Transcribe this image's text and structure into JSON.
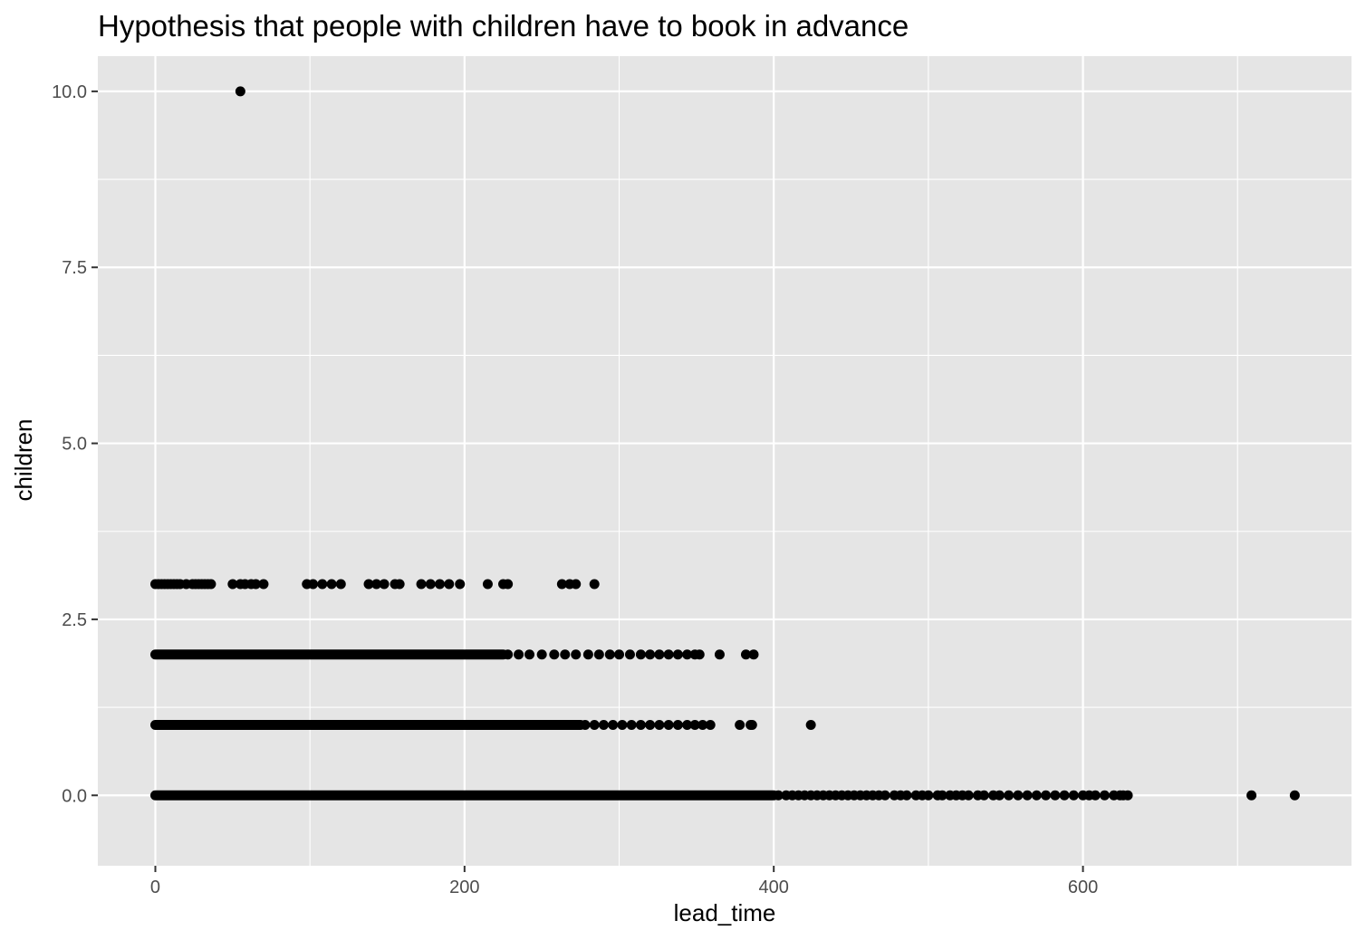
{
  "chart_data": {
    "type": "scatter",
    "title": "Hypothesis that people with children have to book in advance",
    "xlabel": "lead_time",
    "ylabel": "children",
    "xlim": [
      -37.2,
      773.7
    ],
    "ylim": [
      -1.0,
      10.5
    ],
    "x_ticks": [
      0,
      200,
      400,
      600
    ],
    "x_tick_labels": [
      "0",
      "200",
      "400",
      "600"
    ],
    "y_ticks": [
      0,
      2.5,
      5,
      7.5,
      10
    ],
    "y_tick_labels": [
      "0.0",
      "2.5",
      "5.0",
      "7.5",
      "10.0"
    ],
    "grid": true,
    "legend": "none",
    "colors": {
      "panel": "#e5e5e5",
      "grid": "#ffffff",
      "point": "#000000"
    },
    "series": [
      {
        "dense_ranges": [
          {
            "y": 0,
            "from": 0,
            "to": 400
          },
          {
            "y": 1,
            "from": 0,
            "to": 275
          },
          {
            "y": 2,
            "from": 0,
            "to": 225
          }
        ],
        "points": [
          [
            55,
            10
          ],
          [
            0,
            3
          ],
          [
            2,
            3
          ],
          [
            4,
            3
          ],
          [
            6,
            3
          ],
          [
            8,
            3
          ],
          [
            10,
            3
          ],
          [
            12,
            3
          ],
          [
            14,
            3
          ],
          [
            16,
            3
          ],
          [
            20,
            3
          ],
          [
            24,
            3
          ],
          [
            26,
            3
          ],
          [
            28,
            3
          ],
          [
            30,
            3
          ],
          [
            32,
            3
          ],
          [
            34,
            3
          ],
          [
            36,
            3
          ],
          [
            50,
            3
          ],
          [
            55,
            3
          ],
          [
            58,
            3
          ],
          [
            62,
            3
          ],
          [
            65,
            3
          ],
          [
            70,
            3
          ],
          [
            98,
            3
          ],
          [
            102,
            3
          ],
          [
            108,
            3
          ],
          [
            114,
            3
          ],
          [
            120,
            3
          ],
          [
            138,
            3
          ],
          [
            143,
            3
          ],
          [
            148,
            3
          ],
          [
            155,
            3
          ],
          [
            158,
            3
          ],
          [
            172,
            3
          ],
          [
            178,
            3
          ],
          [
            184,
            3
          ],
          [
            190,
            3
          ],
          [
            197,
            3
          ],
          [
            215,
            3
          ],
          [
            225,
            3
          ],
          [
            228,
            3
          ],
          [
            263,
            3
          ],
          [
            268,
            3
          ],
          [
            272,
            3
          ],
          [
            284,
            3
          ],
          [
            228,
            2
          ],
          [
            235,
            2
          ],
          [
            242,
            2
          ],
          [
            250,
            2
          ],
          [
            258,
            2
          ],
          [
            265,
            2
          ],
          [
            272,
            2
          ],
          [
            280,
            2
          ],
          [
            287,
            2
          ],
          [
            294,
            2
          ],
          [
            300,
            2
          ],
          [
            307,
            2
          ],
          [
            314,
            2
          ],
          [
            320,
            2
          ],
          [
            326,
            2
          ],
          [
            332,
            2
          ],
          [
            338,
            2
          ],
          [
            344,
            2
          ],
          [
            349,
            2
          ],
          [
            352,
            2
          ],
          [
            365,
            2
          ],
          [
            382,
            2
          ],
          [
            387,
            2
          ],
          [
            278,
            1
          ],
          [
            284,
            1
          ],
          [
            290,
            1
          ],
          [
            296,
            1
          ],
          [
            302,
            1
          ],
          [
            308,
            1
          ],
          [
            314,
            1
          ],
          [
            320,
            1
          ],
          [
            326,
            1
          ],
          [
            332,
            1
          ],
          [
            338,
            1
          ],
          [
            344,
            1
          ],
          [
            349,
            1
          ],
          [
            354,
            1
          ],
          [
            359,
            1
          ],
          [
            378,
            1
          ],
          [
            385,
            1
          ],
          [
            386,
            1
          ],
          [
            424,
            1
          ],
          [
            403,
            0
          ],
          [
            408,
            0
          ],
          [
            412,
            0
          ],
          [
            416,
            0
          ],
          [
            420,
            0
          ],
          [
            424,
            0
          ],
          [
            428,
            0
          ],
          [
            432,
            0
          ],
          [
            436,
            0
          ],
          [
            440,
            0
          ],
          [
            444,
            0
          ],
          [
            448,
            0
          ],
          [
            452,
            0
          ],
          [
            456,
            0
          ],
          [
            460,
            0
          ],
          [
            464,
            0
          ],
          [
            468,
            0
          ],
          [
            472,
            0
          ],
          [
            478,
            0
          ],
          [
            482,
            0
          ],
          [
            486,
            0
          ],
          [
            492,
            0
          ],
          [
            496,
            0
          ],
          [
            500,
            0
          ],
          [
            506,
            0
          ],
          [
            509,
            0
          ],
          [
            514,
            0
          ],
          [
            518,
            0
          ],
          [
            522,
            0
          ],
          [
            526,
            0
          ],
          [
            532,
            0
          ],
          [
            536,
            0
          ],
          [
            542,
            0
          ],
          [
            546,
            0
          ],
          [
            552,
            0
          ],
          [
            558,
            0
          ],
          [
            564,
            0
          ],
          [
            570,
            0
          ],
          [
            576,
            0
          ],
          [
            582,
            0
          ],
          [
            588,
            0
          ],
          [
            594,
            0
          ],
          [
            600,
            0
          ],
          [
            604,
            0
          ],
          [
            608,
            0
          ],
          [
            614,
            0
          ],
          [
            620,
            0
          ],
          [
            624,
            0
          ],
          [
            626,
            0
          ],
          [
            629,
            0
          ],
          [
            709,
            0
          ],
          [
            737,
            0
          ]
        ]
      }
    ]
  }
}
